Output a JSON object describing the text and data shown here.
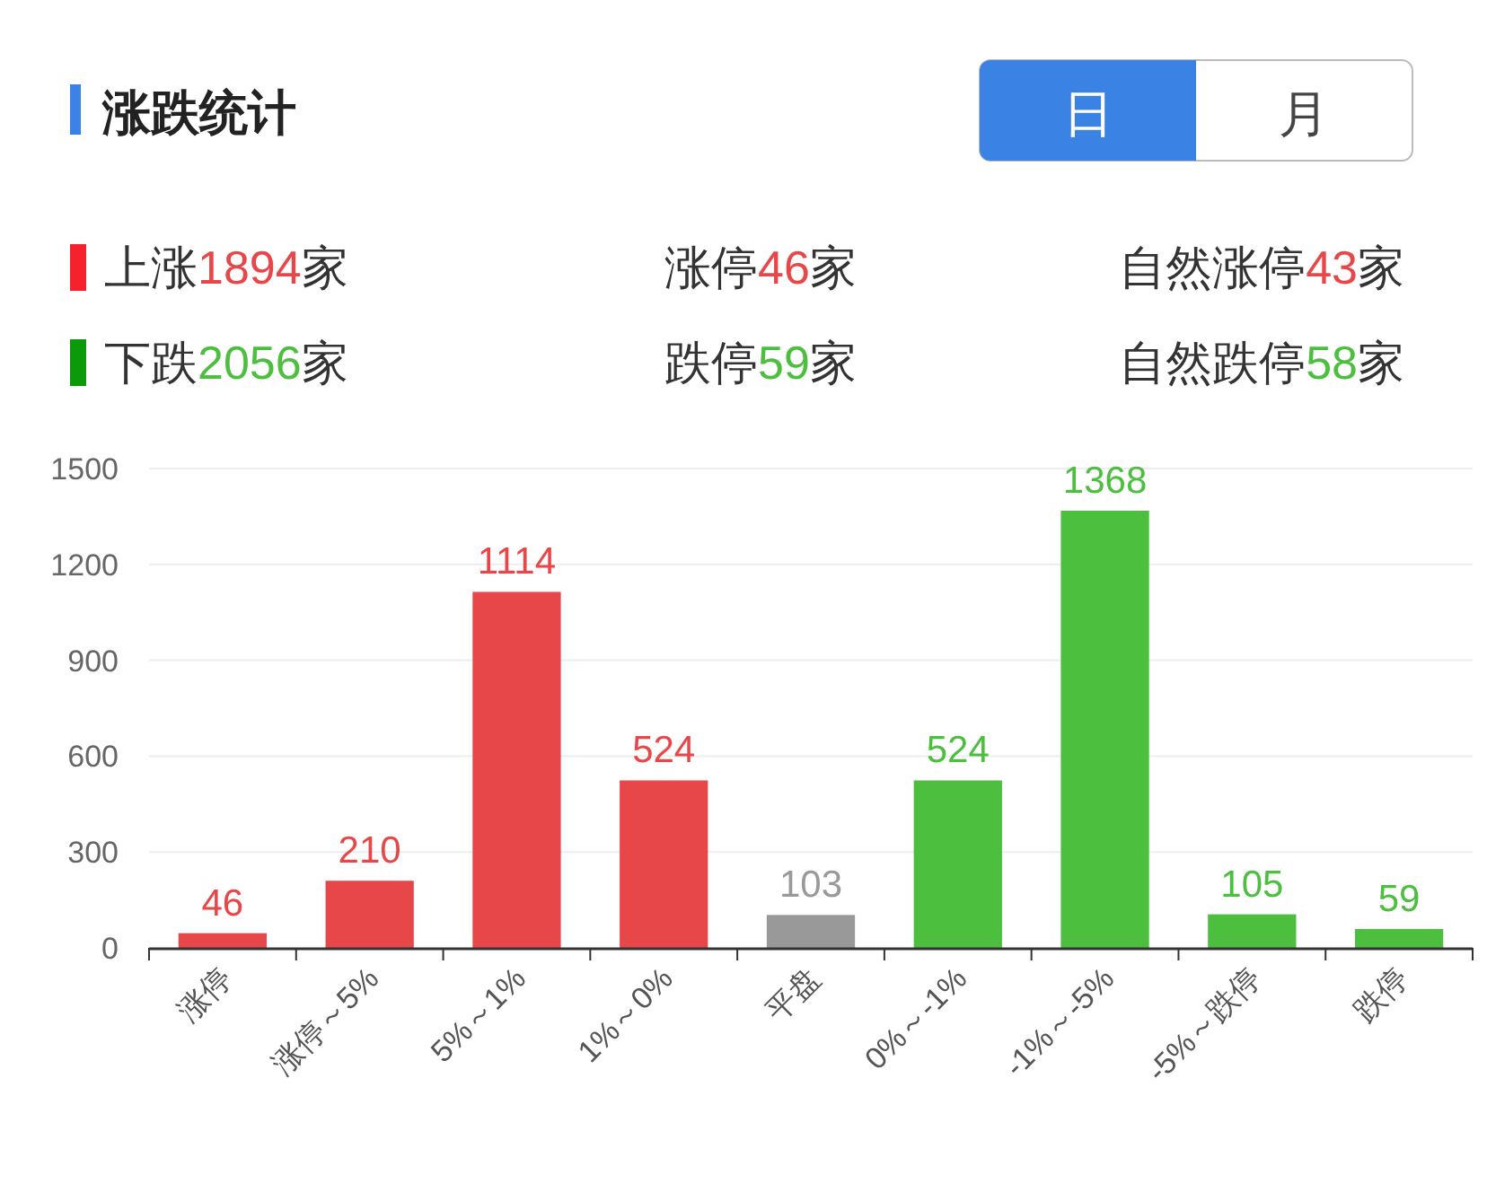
{
  "chart_data": {
    "type": "bar",
    "title": "涨跌统计",
    "annotations": [
      "日",
      "月",
      "上涨1894家",
      "涨停46家",
      "自然涨停43家",
      "下跌2056家",
      "跌停59家",
      "自然跌停58家"
    ],
    "categories": [
      "涨停",
      "涨停～5%",
      "5%～1%",
      "1%～0%",
      "平盘",
      "0%～-1%",
      "-1%～-5%",
      "-5%～跌停",
      "跌停"
    ],
    "values": [
      46,
      210,
      1114,
      524,
      103,
      524,
      1368,
      105,
      59
    ],
    "colors": [
      "#e8474a",
      "#e8474a",
      "#e8474a",
      "#e8474a",
      "#999999",
      "#4cbf3f",
      "#4cbf3f",
      "#4cbf3f",
      "#4cbf3f"
    ],
    "ylim": [
      0,
      1500
    ],
    "yticks": [
      0,
      300,
      600,
      900,
      1200,
      1500
    ],
    "grid": "y",
    "data_labels": true
  }
}
